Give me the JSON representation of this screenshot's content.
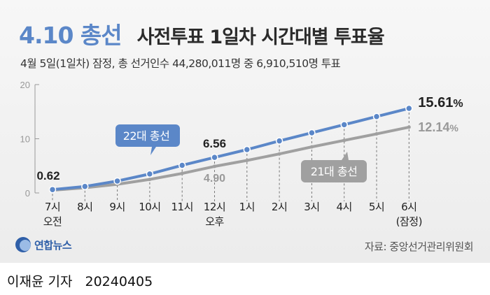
{
  "header": {
    "title_main": "4.10 총선",
    "title_sub": "사전투표 1일차 시간대별 투표율",
    "subtitle": "4월 5일(1일차) 잠정, 총 선거인수 44,280,011명 중 6,910,510명 투표"
  },
  "footer": {
    "logo_text": "연합뉴스",
    "source": "자료: 중앙선거관리위원회"
  },
  "credit": {
    "author": "이재윤 기자",
    "date": "20240405"
  },
  "colors": {
    "series_22": "#5b87c8",
    "series_21": "#a0a0a0",
    "title_accent": "#5b87c8",
    "background": "#efefef"
  },
  "chart_data": {
    "type": "line",
    "x": [
      "7시",
      "8시",
      "9시",
      "10시",
      "11시",
      "12시",
      "1시",
      "2시",
      "3시",
      "4시",
      "5시",
      "6시"
    ],
    "x_sub": [
      "오전",
      "",
      "",
      "",
      "",
      "오후",
      "",
      "",
      "",
      "",
      "",
      "(잠정)"
    ],
    "ylim": [
      0,
      20
    ],
    "yticks": [
      0,
      10,
      20
    ],
    "grid": false,
    "series": [
      {
        "name": "22대 총선",
        "values": [
          0.62,
          1.2,
          2.2,
          3.5,
          5.1,
          6.56,
          8.0,
          9.6,
          11.1,
          12.6,
          14.1,
          15.61
        ]
      },
      {
        "name": "21대 총선",
        "values": [
          0.5,
          0.95,
          1.6,
          2.5,
          3.6,
          4.9,
          6.0,
          7.2,
          8.5,
          9.7,
          10.9,
          12.14
        ]
      }
    ],
    "annotations": [
      {
        "series": 0,
        "index": 0,
        "label": "0.62"
      },
      {
        "series": 0,
        "index": 5,
        "label": "6.56"
      },
      {
        "series": 1,
        "index": 5,
        "label": "4.90"
      },
      {
        "series": 0,
        "index": 11,
        "label": "15.61",
        "unit": "%"
      },
      {
        "series": 1,
        "index": 11,
        "label": "12.14",
        "unit": "%"
      }
    ]
  }
}
